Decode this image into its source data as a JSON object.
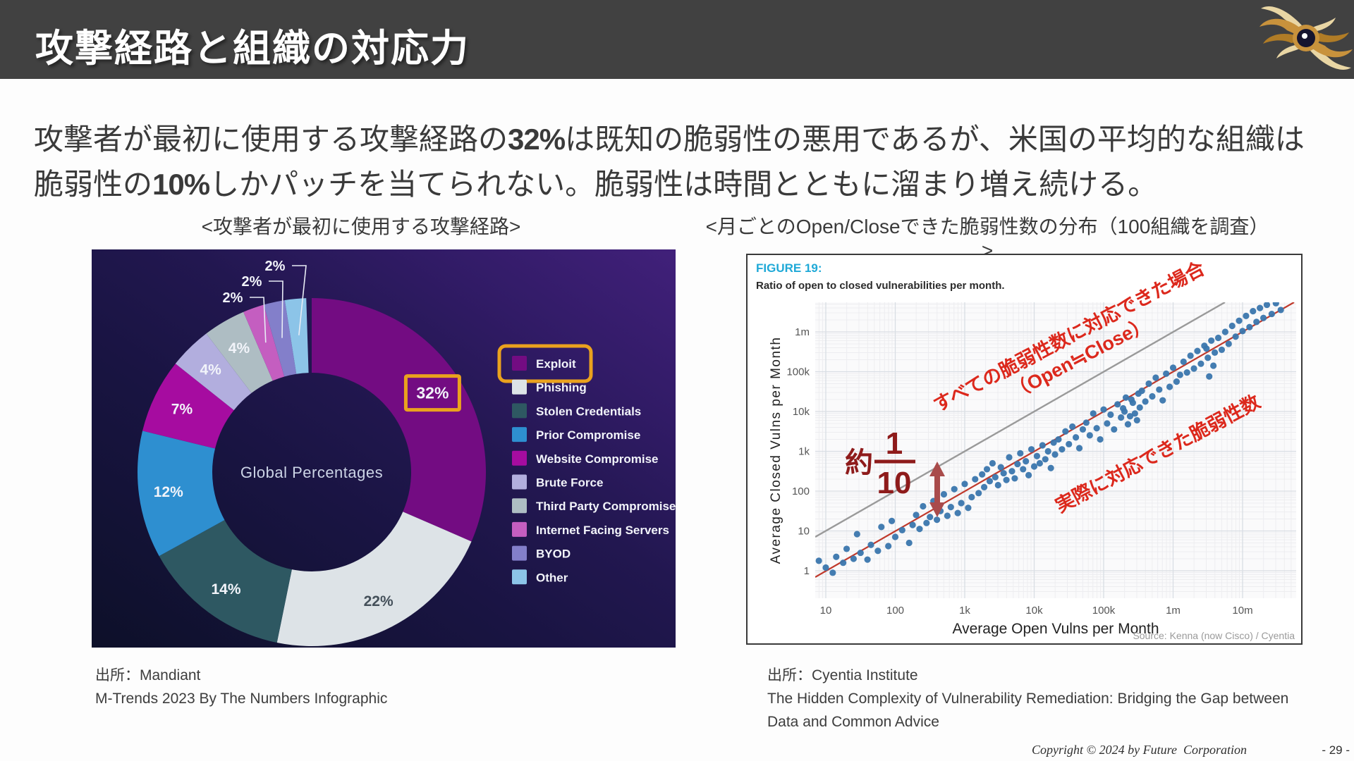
{
  "header": {
    "title": "攻撃経路と組織の対応力",
    "logo_name": "future-corporation-logo"
  },
  "lead": {
    "l1a": "攻撃者が最初に使用する攻撃経路の",
    "l1num": "32%",
    "l1b": "は既知の脆弱性の悪用であるが、米国の平均的な組織は",
    "l2a": "脆弱性の",
    "l2num": "10%",
    "l2b": "しかパッチを当てられない。脆弱性は時間とともに溜まり増え続ける。"
  },
  "left_chart": {
    "title": "<攻撃者が最初に使用する攻撃経路>",
    "source_line1": "出所：Mandiant",
    "source_line2": "M-Trends 2023 By The Numbers Infographic"
  },
  "right_chart": {
    "title": "<月ごとのOpen/Closeできた脆弱性数の分布（100組織を調査）>",
    "source_line1": "出所：Cyentia Institute",
    "source_line2": "The Hidden Complexity of Vulnerability Remediation: Bridging the Gap between",
    "source_line3": "Data and Common Advice"
  },
  "footer": {
    "copyright": "Copyright © 2024 by Future  Corporation",
    "page": "- 29 -"
  },
  "chart_data": [
    {
      "type": "pie",
      "subtype": "donut",
      "title": "<攻撃者が最初に使用する攻撃経路>",
      "center_label": "Global Percentages",
      "highlight_color": "#eaa21e",
      "slices": [
        {
          "label": "Exploit",
          "value": 32,
          "color": "#730c82",
          "highlighted": true
        },
        {
          "label": "Phishing",
          "value": 22,
          "color": "#dde3e7"
        },
        {
          "label": "Stolen Credentials",
          "value": 14,
          "color": "#2e5862"
        },
        {
          "label": "Prior Compromise",
          "value": 12,
          "color": "#2e8fd0"
        },
        {
          "label": "Website Compromise",
          "value": 7,
          "color": "#a60ca0"
        },
        {
          "label": "Brute Force",
          "value": 4,
          "color": "#b2aede"
        },
        {
          "label": "Third Party Compromise",
          "value": 4,
          "color": "#aebdc3"
        },
        {
          "label": "Internet Facing Servers",
          "value": 2,
          "color": "#c45ec0"
        },
        {
          "label": "BYOD",
          "value": 2,
          "color": "#837fca"
        },
        {
          "label": "Other",
          "value": 2,
          "color": "#8cc4e8"
        }
      ]
    },
    {
      "type": "scatter",
      "figure_label": "FIGURE 19:",
      "figure_label_color": "#1fa9d7",
      "subtitle": "Ratio of open to closed vulnerabilities per month.",
      "xlabel": "Average Open Vulns per Month",
      "ylabel": "Average Closed Vulns per Month",
      "x_ticks": [
        "10",
        "100",
        "1k",
        "10k",
        "100k",
        "1m",
        "10m"
      ],
      "y_ticks": [
        "1",
        "10",
        "100",
        "1k",
        "10k",
        "100k",
        "1m"
      ],
      "x_range_log10": [
        0.85,
        7.77
      ],
      "y_range_log10": [
        -0.69,
        6.74
      ],
      "grid": true,
      "point_color": "#3a76ad",
      "lines": [
        {
          "name": "open-equals-close",
          "equation": "y = x",
          "color": "#9a9a9a"
        },
        {
          "name": "actual-closed",
          "equation": "y = x/10",
          "color": "#c0392b"
        }
      ],
      "annotations": [
        {
          "name": "all-vulns-label",
          "line1": "すべての脆弱性数に対応できた場合",
          "line2": "（Open≒Close）",
          "color": "#dc281c"
        },
        {
          "name": "actual-vulns-label",
          "line1": "実際に対応できた脆弱性数",
          "color": "#dc281c"
        },
        {
          "name": "ratio-callout",
          "prefix": "約",
          "numerator": "1",
          "denominator": "10",
          "color": "#8e1b1b",
          "arrow_color": "#a94b4b"
        }
      ],
      "source": "Source: Kenna (now Cisco) / Cyentia",
      "points_log10": [
        [
          0.9,
          0.25
        ],
        [
          1.0,
          0.08
        ],
        [
          1.1,
          -0.05
        ],
        [
          1.15,
          0.35
        ],
        [
          1.25,
          0.2
        ],
        [
          1.3,
          0.55
        ],
        [
          1.4,
          0.3
        ],
        [
          1.45,
          0.92
        ],
        [
          1.5,
          0.45
        ],
        [
          1.6,
          0.28
        ],
        [
          1.65,
          0.65
        ],
        [
          1.75,
          0.5
        ],
        [
          1.8,
          1.1
        ],
        [
          1.9,
          0.62
        ],
        [
          1.95,
          1.25
        ],
        [
          2.0,
          0.85
        ],
        [
          2.1,
          1.02
        ],
        [
          2.2,
          0.7
        ],
        [
          2.25,
          1.15
        ],
        [
          2.3,
          1.4
        ],
        [
          2.35,
          1.05
        ],
        [
          2.4,
          1.62
        ],
        [
          2.45,
          1.2
        ],
        [
          2.5,
          1.35
        ],
        [
          2.55,
          1.75
        ],
        [
          2.6,
          1.28
        ],
        [
          2.65,
          1.5
        ],
        [
          2.7,
          1.92
        ],
        [
          2.75,
          1.38
        ],
        [
          2.8,
          1.6
        ],
        [
          2.85,
          2.05
        ],
        [
          2.9,
          1.45
        ],
        [
          2.95,
          1.7
        ],
        [
          3.0,
          2.18
        ],
        [
          3.05,
          1.58
        ],
        [
          3.1,
          1.85
        ],
        [
          3.15,
          2.3
        ],
        [
          3.2,
          1.95
        ],
        [
          3.25,
          2.42
        ],
        [
          3.28,
          2.1
        ],
        [
          3.32,
          2.55
        ],
        [
          3.36,
          2.25
        ],
        [
          3.4,
          2.7
        ],
        [
          3.44,
          2.35
        ],
        [
          3.48,
          2.15
        ],
        [
          3.52,
          2.6
        ],
        [
          3.56,
          2.45
        ],
        [
          3.6,
          2.28
        ],
        [
          3.64,
          2.85
        ],
        [
          3.68,
          2.5
        ],
        [
          3.72,
          2.32
        ],
        [
          3.76,
          2.68
        ],
        [
          3.8,
          2.95
        ],
        [
          3.84,
          2.55
        ],
        [
          3.88,
          2.75
        ],
        [
          3.92,
          2.4
        ],
        [
          3.96,
          3.05
        ],
        [
          4.0,
          2.62
        ],
        [
          4.04,
          2.88
        ],
        [
          4.08,
          2.7
        ],
        [
          4.12,
          3.15
        ],
        [
          4.16,
          2.8
        ],
        [
          4.2,
          3.0
        ],
        [
          4.24,
          2.58
        ],
        [
          4.28,
          3.22
        ],
        [
          4.3,
          2.92
        ],
        [
          4.35,
          3.3
        ],
        [
          4.4,
          3.05
        ],
        [
          4.45,
          3.5
        ],
        [
          4.5,
          3.18
        ],
        [
          4.55,
          3.62
        ],
        [
          4.6,
          3.35
        ],
        [
          4.65,
          3.08
        ],
        [
          4.7,
          3.55
        ],
        [
          4.75,
          3.72
        ],
        [
          4.8,
          3.4
        ],
        [
          4.85,
          3.95
        ],
        [
          4.9,
          3.58
        ],
        [
          4.95,
          3.3
        ],
        [
          5.0,
          4.05
        ],
        [
          5.05,
          3.7
        ],
        [
          5.1,
          3.92
        ],
        [
          5.15,
          3.55
        ],
        [
          5.2,
          4.18
        ],
        [
          5.25,
          3.85
        ],
        [
          5.3,
          4.0
        ],
        [
          5.35,
          3.68
        ],
        [
          5.4,
          4.3
        ],
        [
          5.45,
          3.95
        ],
        [
          5.5,
          4.45
        ],
        [
          5.52,
          4.1
        ],
        [
          5.48,
          3.78
        ],
        [
          5.42,
          4.22
        ],
        [
          5.38,
          3.88
        ],
        [
          5.32,
          4.35
        ],
        [
          5.28,
          4.08
        ],
        [
          5.55,
          4.52
        ],
        [
          5.6,
          4.25
        ],
        [
          5.65,
          4.7
        ],
        [
          5.7,
          4.38
        ],
        [
          5.75,
          4.85
        ],
        [
          5.8,
          4.55
        ],
        [
          5.85,
          4.28
        ],
        [
          5.9,
          4.95
        ],
        [
          5.95,
          4.62
        ],
        [
          6.0,
          5.1
        ],
        [
          6.05,
          4.75
        ],
        [
          6.1,
          4.92
        ],
        [
          6.15,
          5.25
        ],
        [
          6.2,
          4.98
        ],
        [
          6.25,
          5.4
        ],
        [
          6.3,
          5.08
        ],
        [
          6.35,
          5.52
        ],
        [
          6.4,
          5.2
        ],
        [
          6.45,
          5.65
        ],
        [
          6.5,
          5.35
        ],
        [
          6.55,
          5.78
        ],
        [
          6.6,
          5.48
        ],
        [
          6.58,
          5.15
        ],
        [
          6.52,
          4.88
        ],
        [
          6.48,
          5.58
        ],
        [
          6.65,
          5.85
        ],
        [
          6.7,
          5.55
        ],
        [
          6.75,
          6.0
        ],
        [
          6.8,
          5.7
        ],
        [
          6.85,
          6.15
        ],
        [
          6.9,
          5.88
        ],
        [
          6.95,
          6.28
        ],
        [
          7.0,
          6.02
        ],
        [
          7.05,
          6.4
        ],
        [
          7.1,
          6.12
        ],
        [
          7.15,
          6.52
        ],
        [
          7.2,
          6.25
        ],
        [
          7.25,
          6.6
        ],
        [
          7.3,
          6.35
        ],
        [
          7.35,
          6.68
        ],
        [
          7.42,
          6.45
        ],
        [
          7.48,
          6.72
        ],
        [
          7.55,
          6.55
        ]
      ]
    }
  ]
}
